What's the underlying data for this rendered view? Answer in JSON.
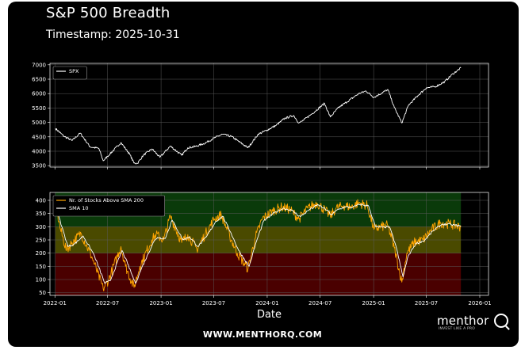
{
  "header": {
    "title": "S&P 500 Breadth",
    "timestamp": "Timestamp: 2025-10-31"
  },
  "footer": {
    "url": "WWW.MENTHORQ.COM",
    "logo_word": "menthor",
    "logo_tagline": "INVEST LIKE A PRO"
  },
  "colors": {
    "background": "#000000",
    "spx_line": "#ffffff",
    "breadth_line": "#ffa500",
    "sma_line": "#ffffff",
    "zone_high": "#0a3a0a",
    "zone_mid": "#4a4a00",
    "zone_low": "#4a0000"
  },
  "chart_data": [
    {
      "type": "line",
      "xlabel": "",
      "ylabel": "",
      "ylim": [
        3450,
        7050
      ],
      "xlim": [
        "2021-12-15",
        "2025-10-31"
      ],
      "yticks": [
        3500,
        4000,
        4500,
        5000,
        5500,
        6000,
        6500,
        7000
      ],
      "grid": true,
      "legend": "top-left",
      "series": [
        {
          "name": "SPX",
          "x": [
            "2022-01-03",
            "2022-02-01",
            "2022-03-01",
            "2022-03-29",
            "2022-05-02",
            "2022-06-01",
            "2022-06-16",
            "2022-07-01",
            "2022-08-16",
            "2022-09-15",
            "2022-09-30",
            "2022-10-12",
            "2022-11-01",
            "2022-12-01",
            "2022-12-28",
            "2023-02-02",
            "2023-03-13",
            "2023-04-03",
            "2023-05-01",
            "2023-06-01",
            "2023-07-03",
            "2023-07-31",
            "2023-09-01",
            "2023-10-02",
            "2023-10-27",
            "2023-12-01",
            "2024-01-02",
            "2024-02-01",
            "2024-03-01",
            "2024-04-01",
            "2024-04-19",
            "2024-05-01",
            "2024-06-03",
            "2024-07-16",
            "2024-08-05",
            "2024-09-03",
            "2024-10-01",
            "2024-11-11",
            "2024-12-06",
            "2025-01-02",
            "2025-02-19",
            "2025-03-13",
            "2025-04-08",
            "2025-05-01",
            "2025-06-02",
            "2025-07-01",
            "2025-08-01",
            "2025-09-02",
            "2025-10-01",
            "2025-10-28"
          ],
          "values": [
            4790,
            4520,
            4370,
            4630,
            4150,
            4100,
            3670,
            3820,
            4300,
            3900,
            3590,
            3580,
            3860,
            4080,
            3790,
            4180,
            3860,
            4120,
            4170,
            4280,
            4460,
            4590,
            4510,
            4290,
            4120,
            4590,
            4740,
            4900,
            5140,
            5240,
            4980,
            5050,
            5300,
            5660,
            5190,
            5520,
            5710,
            6000,
            6090,
            5870,
            6140,
            5520,
            4980,
            5600,
            5930,
            6200,
            6240,
            6410,
            6690,
            6890
          ]
        }
      ]
    },
    {
      "type": "line",
      "xlabel": "Date",
      "ylabel": "",
      "ylim": [
        40,
        430
      ],
      "xlim": [
        "2021-12-15",
        "2025-10-31"
      ],
      "yticks": [
        50,
        100,
        150,
        200,
        250,
        300,
        350,
        400
      ],
      "xticks": [
        "2022-01",
        "2022-07",
        "2023-01",
        "2023-07",
        "2024-01",
        "2024-07",
        "2025-01",
        "2025-07",
        "2026-01"
      ],
      "zones": [
        {
          "from": 300,
          "to": 430,
          "color": "green"
        },
        {
          "from": 200,
          "to": 300,
          "color": "yellow"
        },
        {
          "from": 40,
          "to": 200,
          "color": "red"
        }
      ],
      "grid": true,
      "legend": "top-left",
      "series": [
        {
          "name": "Nr. of Stocks Above SMA 200",
          "x": [
            "2022-01-03",
            "2022-01-20",
            "2022-02-10",
            "2022-03-01",
            "2022-04-01",
            "2022-05-10",
            "2022-06-16",
            "2022-07-05",
            "2022-08-16",
            "2022-09-01",
            "2022-09-30",
            "2022-10-20",
            "2022-11-30",
            "2022-12-15",
            "2023-01-10",
            "2023-02-02",
            "2023-03-13",
            "2023-04-03",
            "2023-05-04",
            "2023-06-01",
            "2023-07-03",
            "2023-07-27",
            "2023-08-25",
            "2023-09-20",
            "2023-10-27",
            "2023-11-20",
            "2023-12-15",
            "2024-01-20",
            "2024-02-20",
            "2024-03-20",
            "2024-04-19",
            "2024-05-20",
            "2024-06-20",
            "2024-07-20",
            "2024-08-05",
            "2024-08-25",
            "2024-09-20",
            "2024-10-15",
            "2024-11-11",
            "2024-12-10",
            "2025-01-02",
            "2025-01-25",
            "2025-02-19",
            "2025-03-13",
            "2025-04-08",
            "2025-04-25",
            "2025-05-20",
            "2025-06-20",
            "2025-07-20",
            "2025-08-20",
            "2025-09-20",
            "2025-10-28"
          ],
          "values": [
            390,
            290,
            210,
            240,
            275,
            180,
            65,
            100,
            225,
            150,
            70,
            150,
            250,
            270,
            250,
            340,
            240,
            270,
            215,
            270,
            330,
            345,
            265,
            200,
            140,
            255,
            330,
            360,
            375,
            365,
            330,
            370,
            390,
            360,
            340,
            370,
            380,
            375,
            390,
            380,
            290,
            300,
            305,
            220,
            90,
            200,
            240,
            250,
            290,
            315,
            310,
            300
          ]
        },
        {
          "name": "SMA 10",
          "x": [
            "2022-01-03",
            "2022-01-25",
            "2022-02-15",
            "2022-03-10",
            "2022-04-08",
            "2022-05-15",
            "2022-06-22",
            "2022-07-10",
            "2022-08-20",
            "2022-09-08",
            "2022-10-05",
            "2022-10-25",
            "2022-12-05",
            "2022-12-20",
            "2023-01-15",
            "2023-02-08",
            "2023-03-18",
            "2023-04-08",
            "2023-05-08",
            "2023-06-06",
            "2023-07-08",
            "2023-08-01",
            "2023-08-30",
            "2023-09-25",
            "2023-10-31",
            "2023-11-25",
            "2023-12-20",
            "2024-01-25",
            "2024-02-25",
            "2024-03-25",
            "2024-04-24",
            "2024-05-25",
            "2024-06-25",
            "2024-07-25",
            "2024-08-10",
            "2024-08-30",
            "2024-09-25",
            "2024-10-20",
            "2024-11-15",
            "2024-12-15",
            "2025-01-07",
            "2025-01-30",
            "2025-02-24",
            "2025-03-18",
            "2025-04-12",
            "2025-04-30",
            "2025-05-25",
            "2025-06-25",
            "2025-07-25",
            "2025-08-25",
            "2025-09-25",
            "2025-10-28"
          ],
          "values": [
            380,
            300,
            225,
            235,
            265,
            195,
            85,
            95,
            210,
            160,
            85,
            140,
            240,
            260,
            255,
            325,
            250,
            262,
            225,
            262,
            320,
            340,
            275,
            210,
            150,
            245,
            322,
            352,
            370,
            362,
            338,
            365,
            383,
            362,
            345,
            365,
            375,
            373,
            385,
            378,
            300,
            298,
            300,
            230,
            110,
            190,
            235,
            248,
            285,
            310,
            308,
            302
          ]
        }
      ]
    }
  ]
}
